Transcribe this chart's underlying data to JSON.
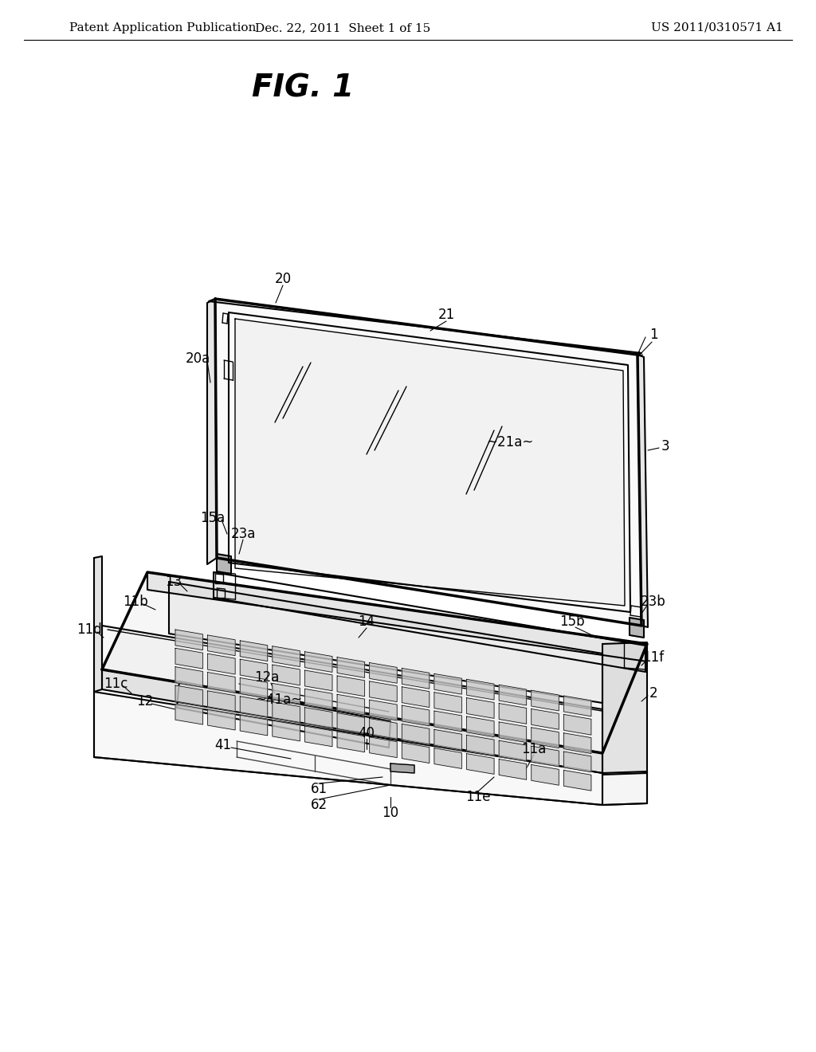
{
  "title": "FIG. 1",
  "header_left": "Patent Application Publication",
  "header_center": "Dec. 22, 2011  Sheet 1 of 15",
  "header_right": "US 2011/0310571 A1",
  "background_color": "#ffffff",
  "line_color": "#000000",
  "label_color": "#000000",
  "header_fontsize": 11,
  "title_fontsize": 28,
  "label_fontsize": 12
}
